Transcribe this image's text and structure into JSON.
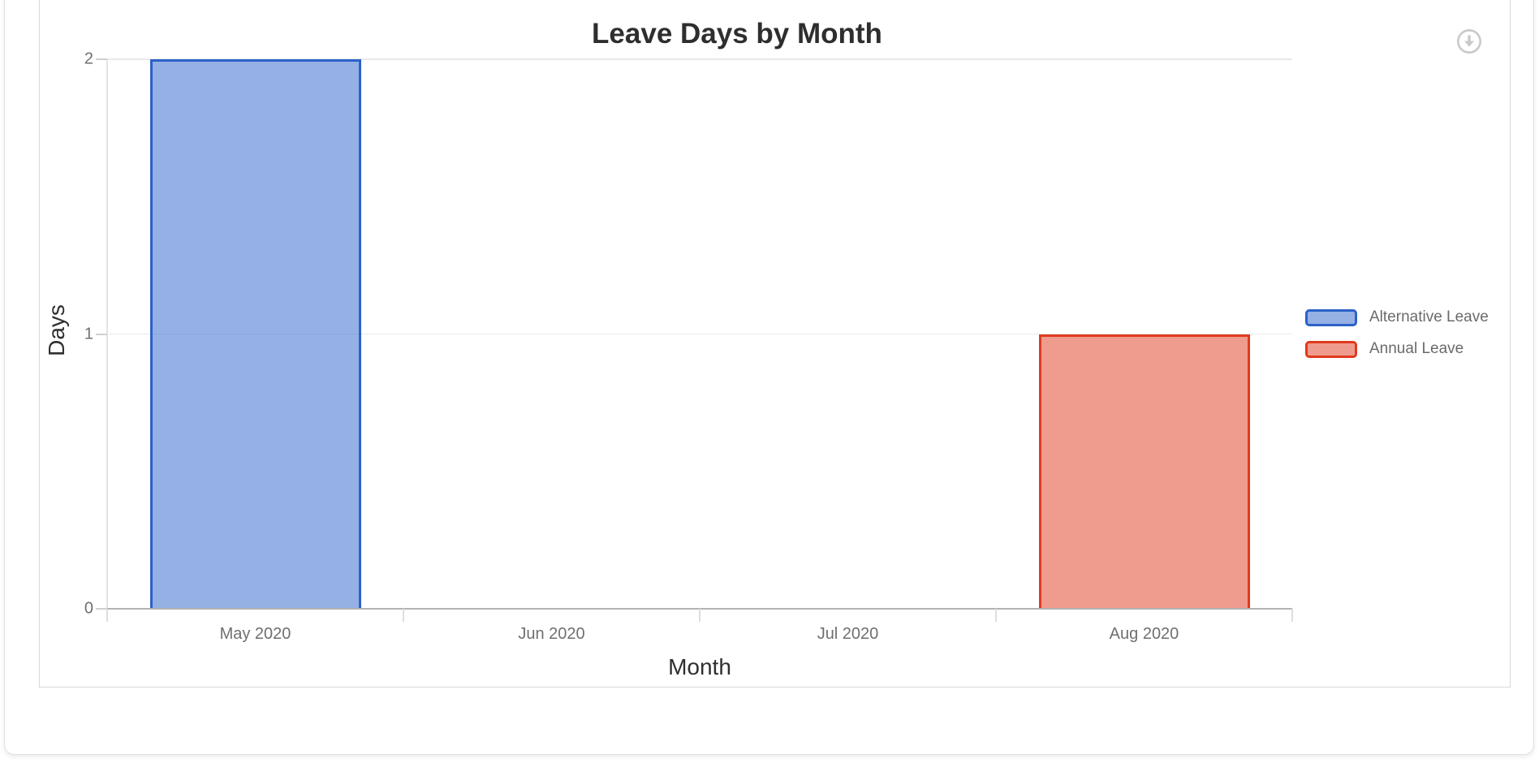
{
  "toolbar": {
    "download_icon": "download-circle-arrow",
    "icon_color": "#c9c9c9"
  },
  "chart_data": {
    "type": "bar",
    "title": "Leave Days by Month",
    "xlabel": "Month",
    "ylabel": "Days",
    "categories": [
      "May 2020",
      "Jun 2020",
      "Jul 2020",
      "Aug 2020"
    ],
    "series": [
      {
        "name": "Alternative Leave",
        "color": "#2b61c9",
        "values": [
          2,
          0,
          0,
          0
        ]
      },
      {
        "name": "Annual Leave",
        "color": "#e03a1d",
        "values": [
          0,
          0,
          0,
          1
        ]
      }
    ],
    "fill_opacity": 0.5,
    "ylim": [
      0,
      2
    ],
    "yticks": [
      0,
      1,
      2
    ],
    "grid": true,
    "legend_position": "right"
  }
}
